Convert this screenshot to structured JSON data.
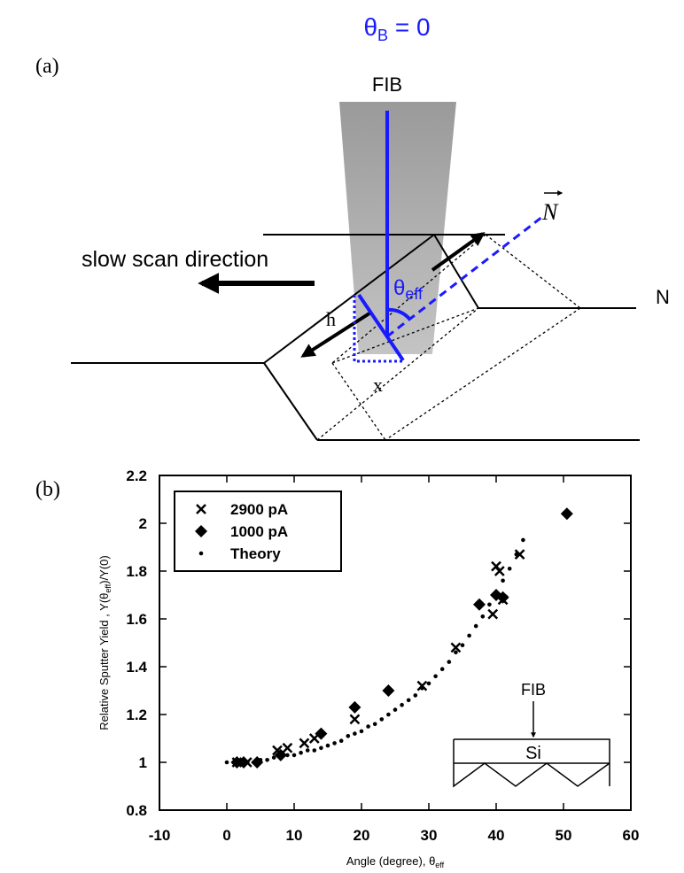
{
  "panel_labels": [
    "(a)",
    "(b)"
  ],
  "diagram": {
    "title": [
      "θ",
      "B",
      " = 0"
    ],
    "beam_label": "FIB",
    "normal_label": "N",
    "scan_label": "slow scan direction",
    "angle_label": [
      "θ",
      "eff"
    ],
    "h_label": "h",
    "x_label": "x",
    "right_label": "N"
  },
  "chart_data": {
    "type": "scatter",
    "xlabel": [
      "Angle (degree), θ",
      "eff"
    ],
    "ylabel": [
      "Relative Sputter Yield , Y(θ",
      "eff",
      ")/Y(0)"
    ],
    "xlim": [
      -10,
      60
    ],
    "xticks": [
      -10,
      0,
      10,
      20,
      30,
      40,
      50,
      60
    ],
    "ylim": [
      0.8,
      2.2
    ],
    "yticks": [
      0.8,
      1,
      1.2,
      1.4,
      1.6,
      1.8,
      2,
      2.2
    ],
    "legend": "upper left",
    "series": [
      {
        "name": "2900 pA",
        "marker": "x",
        "color": "#000000",
        "x": [
          1.5,
          3,
          7.5,
          9,
          11.5,
          13,
          19,
          29,
          34,
          39.5,
          40,
          40.5,
          41,
          43.5
        ],
        "values": [
          1.0,
          1.0,
          1.05,
          1.06,
          1.08,
          1.1,
          1.18,
          1.32,
          1.48,
          1.62,
          1.82,
          1.8,
          1.68,
          1.87
        ]
      },
      {
        "name": "1000 pA",
        "marker": "diamond",
        "color": "#000000",
        "x": [
          1.5,
          2.5,
          4.5,
          8,
          14,
          19,
          24,
          37.5,
          40,
          41,
          50.5
        ],
        "values": [
          1.0,
          1.0,
          1.0,
          1.03,
          1.12,
          1.23,
          1.3,
          1.66,
          1.7,
          1.69,
          2.04
        ]
      },
      {
        "name": "Theory",
        "marker": "dot",
        "color": "#000000",
        "x": [
          0,
          1,
          2,
          3,
          4,
          5,
          6,
          7,
          8,
          9,
          10,
          11,
          12,
          13,
          14,
          15,
          16,
          17,
          18,
          19,
          20,
          21,
          22,
          23,
          24,
          25,
          26,
          27,
          28,
          29,
          30,
          31,
          32,
          33,
          34,
          35,
          36,
          37,
          38,
          39,
          40,
          41,
          42,
          43,
          44
        ],
        "values": [
          1.0,
          1.0,
          1.0,
          1.0,
          1.0,
          1.01,
          1.01,
          1.02,
          1.02,
          1.03,
          1.03,
          1.04,
          1.05,
          1.05,
          1.06,
          1.07,
          1.08,
          1.09,
          1.11,
          1.12,
          1.13,
          1.15,
          1.16,
          1.18,
          1.2,
          1.22,
          1.24,
          1.26,
          1.28,
          1.31,
          1.33,
          1.36,
          1.39,
          1.42,
          1.46,
          1.49,
          1.53,
          1.57,
          1.61,
          1.66,
          1.7,
          1.76,
          1.81,
          1.87,
          1.93
        ]
      }
    ],
    "annotations": [
      "FIB",
      "Si"
    ]
  }
}
